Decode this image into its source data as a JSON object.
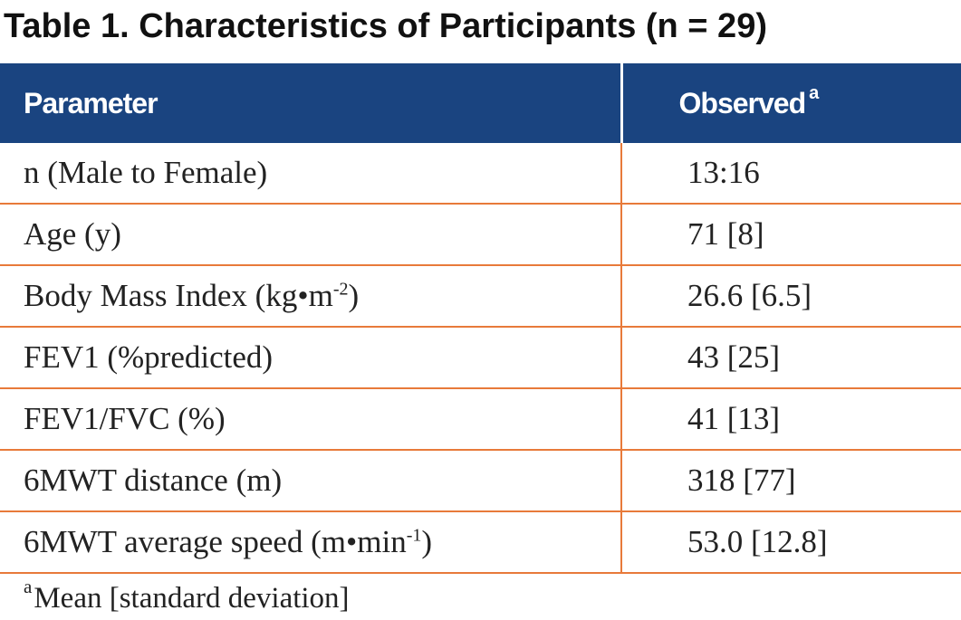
{
  "title": "Table 1. Characteristics of Participants (n = 29)",
  "colors": {
    "header_bg": "#1a4480",
    "row_divider": "#e87a3a",
    "header_text": "#ffffff"
  },
  "header": {
    "parameter": "Parameter",
    "observed": "Observed",
    "observed_marker": "a"
  },
  "rows": [
    {
      "parameter": "n (Male to Female)",
      "observed": "13:16"
    },
    {
      "parameter": "Age (y)",
      "observed": "71 [8]"
    },
    {
      "parameter_pre": "Body Mass Index (kg•m",
      "parameter_sup": "-2",
      "parameter_post": ")",
      "observed": "26.6 [6.5]"
    },
    {
      "parameter": "FEV1 (%predicted)",
      "observed": "43 [25]"
    },
    {
      "parameter": "FEV1/FVC (%)",
      "observed": "41 [13]"
    },
    {
      "parameter": "6MWT distance (m)",
      "observed": "318 [77]"
    },
    {
      "parameter_pre": "6MWT average speed (m•min",
      "parameter_sup": "-1",
      "parameter_post": ")",
      "observed": "53.0 [12.8]"
    }
  ],
  "footnote": {
    "marker": "a",
    "text": "Mean [standard deviation]"
  }
}
